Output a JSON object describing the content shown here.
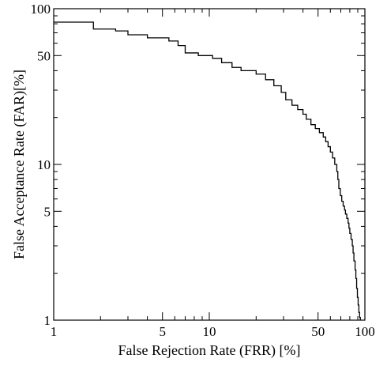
{
  "chart_data": {
    "type": "line",
    "title": "",
    "xlabel": "False Rejection Rate (FRR) [%]",
    "ylabel": "False Acceptance Rate (FAR)[%]",
    "xscale": "log",
    "yscale": "log",
    "xlim": [
      1,
      100
    ],
    "ylim": [
      1,
      100
    ],
    "grid": false,
    "legend": "none",
    "line_color": "#000000",
    "x_major_ticks": [
      {
        "value": 1,
        "label": "1"
      },
      {
        "value": 5,
        "label": "5"
      },
      {
        "value": 10,
        "label": "10"
      },
      {
        "value": 50,
        "label": "50"
      },
      {
        "value": 100,
        "label": "100"
      }
    ],
    "y_major_ticks": [
      {
        "value": 1,
        "label": "1"
      },
      {
        "value": 5,
        "label": "5"
      },
      {
        "value": 10,
        "label": "10"
      },
      {
        "value": 50,
        "label": "50"
      },
      {
        "value": 100,
        "label": "100"
      }
    ],
    "series": [
      {
        "values": [
          [
            1.0,
            82
          ],
          [
            1.8,
            82
          ],
          [
            1.8,
            74
          ],
          [
            2.5,
            74
          ],
          [
            2.5,
            72
          ],
          [
            3.0,
            72
          ],
          [
            3.0,
            68
          ],
          [
            4.0,
            68
          ],
          [
            4.0,
            65
          ],
          [
            5.5,
            65
          ],
          [
            5.5,
            62
          ],
          [
            6.3,
            62
          ],
          [
            6.3,
            58
          ],
          [
            7.0,
            58
          ],
          [
            7.0,
            52
          ],
          [
            8.5,
            52
          ],
          [
            8.5,
            50
          ],
          [
            10.5,
            50
          ],
          [
            10.5,
            48
          ],
          [
            12.0,
            48
          ],
          [
            12.0,
            45
          ],
          [
            14.0,
            45
          ],
          [
            14.0,
            42
          ],
          [
            16.0,
            42
          ],
          [
            16.0,
            40
          ],
          [
            20.0,
            40
          ],
          [
            20.0,
            38
          ],
          [
            23.0,
            38
          ],
          [
            23.0,
            35
          ],
          [
            26.0,
            35
          ],
          [
            26.0,
            32
          ],
          [
            29.0,
            32
          ],
          [
            29.0,
            29
          ],
          [
            31.0,
            29
          ],
          [
            31.0,
            26
          ],
          [
            34.0,
            26
          ],
          [
            34.0,
            24
          ],
          [
            37.0,
            24
          ],
          [
            37.0,
            22.5
          ],
          [
            40.0,
            22.5
          ],
          [
            40.0,
            21
          ],
          [
            42.0,
            21
          ],
          [
            42.0,
            19.5
          ],
          [
            45.0,
            19.5
          ],
          [
            45.0,
            18
          ],
          [
            48.0,
            18
          ],
          [
            48.0,
            17
          ],
          [
            51.0,
            17
          ],
          [
            51.0,
            16
          ],
          [
            54.0,
            16
          ],
          [
            54.0,
            15
          ],
          [
            56.0,
            15
          ],
          [
            56.0,
            14
          ],
          [
            58.0,
            14
          ],
          [
            58.0,
            13
          ],
          [
            60.0,
            13
          ],
          [
            60.0,
            12
          ],
          [
            62.0,
            12
          ],
          [
            62.0,
            11
          ],
          [
            64.0,
            11
          ],
          [
            64.0,
            10
          ],
          [
            66.0,
            10
          ],
          [
            66.0,
            9
          ],
          [
            67.0,
            9
          ],
          [
            67.0,
            8
          ],
          [
            68.0,
            8
          ],
          [
            68.0,
            7
          ],
          [
            69.5,
            7
          ],
          [
            69.5,
            6.3
          ],
          [
            71.0,
            6.3
          ],
          [
            71.0,
            5.8
          ],
          [
            72.5,
            5.8
          ],
          [
            72.5,
            5.4
          ],
          [
            74.0,
            5.4
          ],
          [
            74.0,
            5.1
          ],
          [
            75.0,
            5.1
          ],
          [
            75.0,
            4.8
          ],
          [
            76.5,
            4.8
          ],
          [
            76.5,
            4.5
          ],
          [
            78.0,
            4.5
          ],
          [
            78.0,
            4.2
          ],
          [
            79.0,
            4.2
          ],
          [
            79.0,
            3.9
          ],
          [
            80.0,
            3.9
          ],
          [
            80.0,
            3.6
          ],
          [
            81.5,
            3.6
          ],
          [
            81.5,
            3.3
          ],
          [
            83.0,
            3.3
          ],
          [
            83.0,
            3.0
          ],
          [
            84.0,
            3.0
          ],
          [
            84.0,
            2.7
          ],
          [
            85.0,
            2.7
          ],
          [
            85.0,
            2.4
          ],
          [
            86.5,
            2.4
          ],
          [
            86.5,
            2.1
          ],
          [
            87.5,
            2.1
          ],
          [
            87.5,
            1.85
          ],
          [
            88.5,
            1.85
          ],
          [
            88.5,
            1.6
          ],
          [
            89.5,
            1.6
          ],
          [
            89.5,
            1.4
          ],
          [
            90.5,
            1.4
          ],
          [
            90.5,
            1.25
          ],
          [
            91.5,
            1.25
          ],
          [
            91.5,
            1.12
          ],
          [
            92.5,
            1.12
          ],
          [
            92.5,
            1.04
          ],
          [
            93.5,
            1.04
          ],
          [
            93.5,
            1.0
          ]
        ]
      }
    ]
  }
}
